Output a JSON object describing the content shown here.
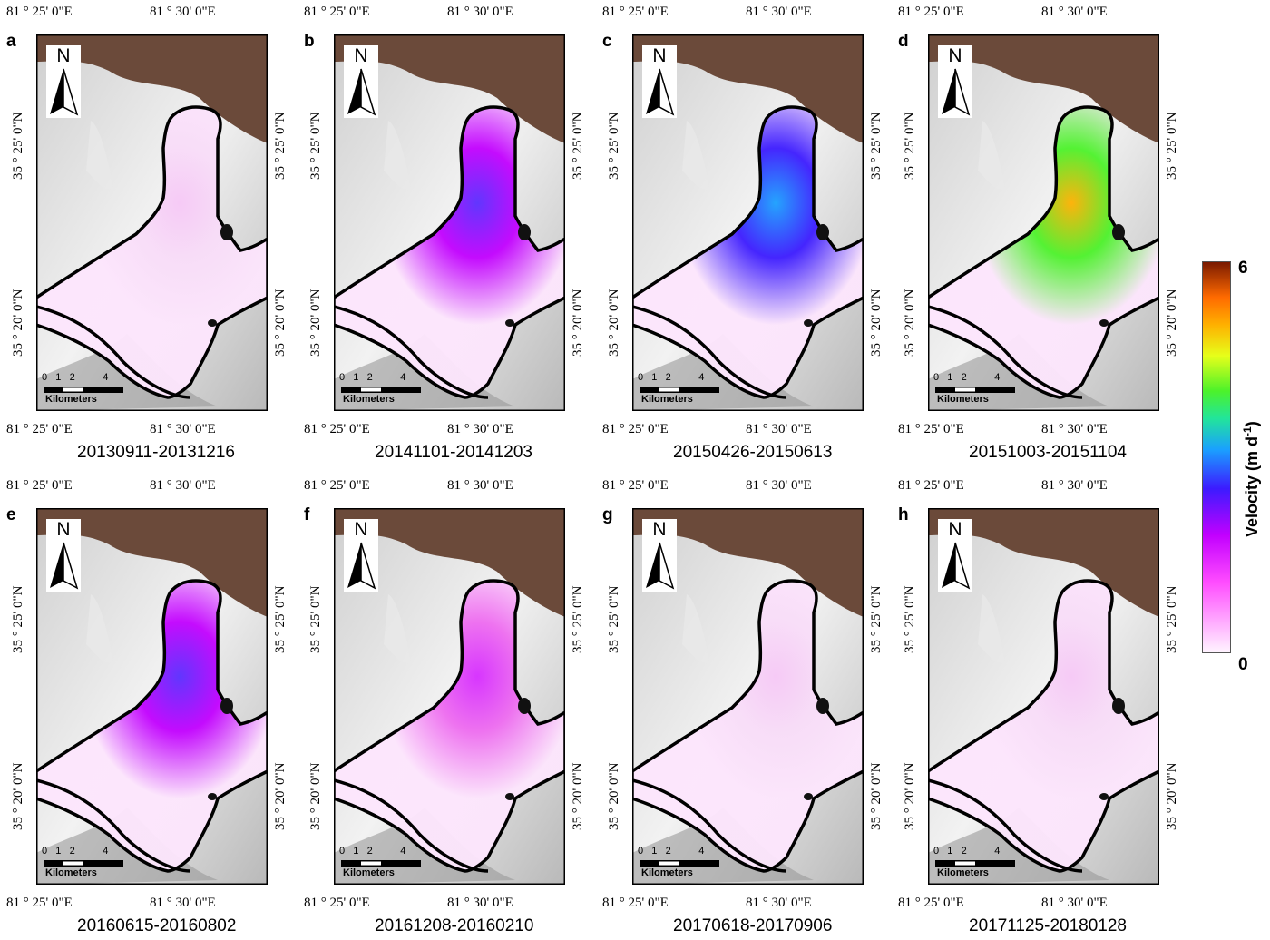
{
  "coords": {
    "lon_left": "81 ° 25' 0\"E",
    "lon_right": "81 ° 30' 0\"E",
    "lat_top": "35 ° 25' 0\"N",
    "lat_bottom": "35 ° 20' 0\"N"
  },
  "north_label": "N",
  "scale": {
    "ticks": "0   1   2          4",
    "unit": "Kilometers"
  },
  "legend": {
    "title": "Velocity (m d",
    "title_sup": "-1",
    "title_end": ")",
    "max": "6",
    "min": "0"
  },
  "panels": [
    {
      "letter": "a",
      "caption": "20130911-20131216",
      "level": 0.1
    },
    {
      "letter": "b",
      "caption": "20141101-20141203",
      "level": 0.45
    },
    {
      "letter": "c",
      "caption": "20150426-20150613",
      "level": 0.6
    },
    {
      "letter": "d",
      "caption": "20151003-20151104",
      "level": 0.9
    },
    {
      "letter": "e",
      "caption": "20160615-20160802",
      "level": 0.45
    },
    {
      "letter": "f",
      "caption": "20161208-20160210",
      "level": 0.3
    },
    {
      "letter": "g",
      "caption": "20170618-20170906",
      "level": 0.1
    },
    {
      "letter": "h",
      "caption": "20171125-20180128",
      "level": 0.08
    }
  ]
}
